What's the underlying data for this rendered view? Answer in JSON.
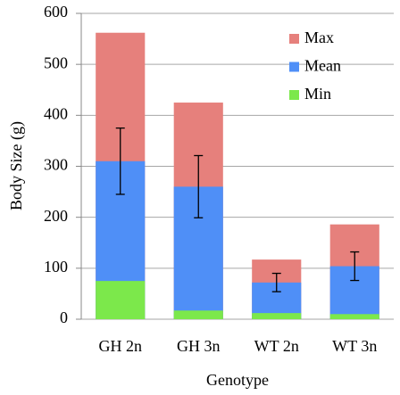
{
  "chart_data": {
    "type": "bar",
    "mode": "overlap",
    "x_label": "Genotype",
    "y_label": "Body Size (g)",
    "categories": [
      "GH 2n",
      "GH 3n",
      "WT 2n",
      "WT 3n"
    ],
    "series": [
      {
        "name": "Max",
        "color": "#e6807c",
        "values": [
          562,
          425,
          117,
          186
        ]
      },
      {
        "name": "Mean",
        "color": "#4f8ff7",
        "values": [
          310,
          260,
          72,
          104
        ],
        "errors": [
          65,
          61,
          18,
          28
        ]
      },
      {
        "name": "Min",
        "color": "#7ce84b",
        "values": [
          75,
          17,
          12,
          10
        ]
      }
    ],
    "ylim": [
      0,
      600
    ],
    "yticks": [
      0,
      100,
      200,
      300,
      400,
      500,
      600
    ],
    "grid": true,
    "legend": "upper right"
  }
}
